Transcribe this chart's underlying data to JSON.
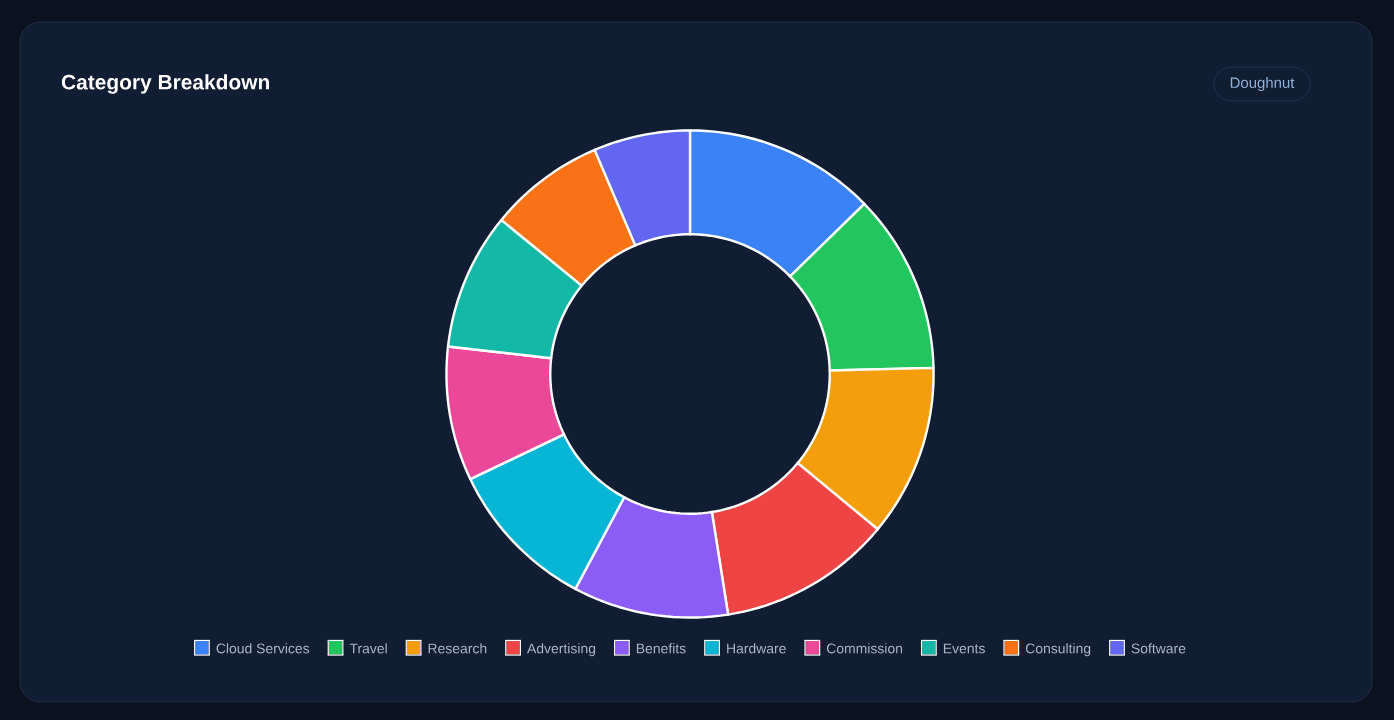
{
  "chart_data": {
    "type": "donut",
    "title": "Category Breakdown",
    "categories": [
      "Cloud Services",
      "Travel",
      "Research",
      "Advertising",
      "Benefits",
      "Hardware",
      "Commission",
      "Events",
      "Consulting",
      "Software"
    ],
    "values": [
      12.7,
      11.9,
      11.4,
      11.5,
      10.3,
      10.1,
      8.9,
      9.1,
      7.7,
      6.4
    ],
    "colors": [
      "#3b82f6",
      "#22c55e",
      "#f59e0b",
      "#ef4444",
      "#8b5cf6",
      "#06b6d4",
      "#ec4899",
      "#14b8a6",
      "#f97316",
      "#6366f1"
    ],
    "legend": "bottom",
    "annotations": [
      "Doughnut"
    ]
  }
}
